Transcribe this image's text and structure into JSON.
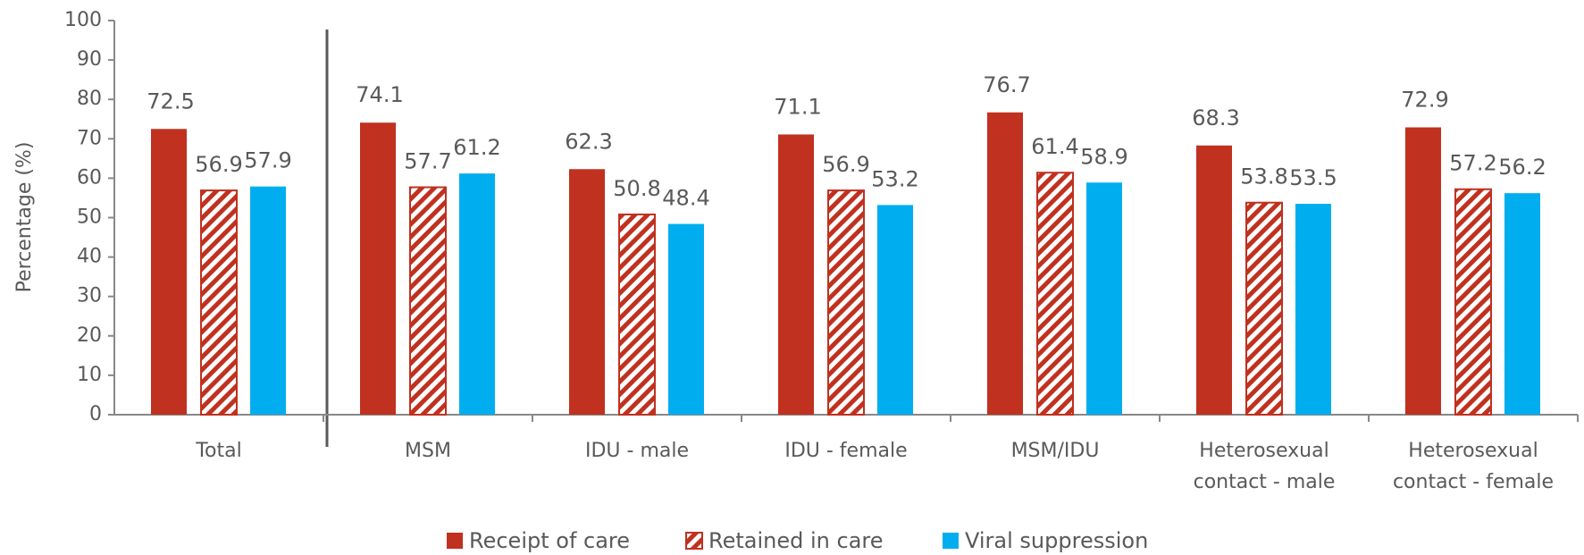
{
  "chart_data": {
    "type": "bar",
    "y_label": "Percentage (%)",
    "categories": [
      "Total",
      "MSM",
      "IDU - male",
      "IDU - female",
      "MSM/IDU",
      [
        "Heterosexual",
        "contact - male"
      ],
      [
        "Heterosexual",
        "contact - female"
      ]
    ],
    "series": [
      {
        "name": "Receipt of care",
        "color": "#c0311f",
        "values": [
          72.5,
          74.1,
          62.3,
          71.1,
          76.7,
          68.3,
          72.9
        ]
      },
      {
        "name": "Retained in care",
        "color": "#c0311f",
        "pattern": "hatch",
        "values": [
          56.9,
          57.7,
          50.8,
          56.9,
          61.4,
          53.8,
          57.2
        ]
      },
      {
        "name": "Viral suppression",
        "color": "#00aeef",
        "values": [
          57.9,
          61.2,
          48.4,
          53.2,
          58.9,
          53.5,
          56.2
        ]
      }
    ],
    "ylim": [
      0,
      100
    ],
    "yticks": [
      0,
      10,
      20,
      30,
      40,
      50,
      60,
      70,
      80,
      90,
      100
    ],
    "grid": false
  }
}
